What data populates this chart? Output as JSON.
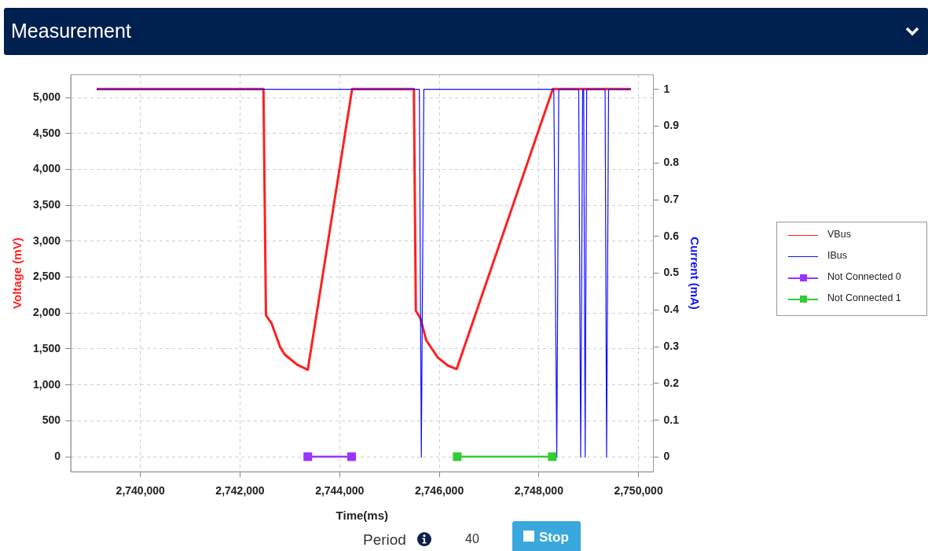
{
  "chart_data": {
    "type": "line",
    "title": "Measurement",
    "xlabel": "Time(ms)",
    "ylabel": "Voltage (mV)",
    "y2label": "Current (mA)",
    "xlim": [
      2738600,
      2750300
    ],
    "xticks": [
      {
        "value": 2740000,
        "label": "2,740,000"
      },
      {
        "value": 2742000,
        "label": "2,742,000"
      },
      {
        "value": 2744000,
        "label": "2,744,000"
      },
      {
        "value": 2746000,
        "label": "2,746,000"
      },
      {
        "value": 2748000,
        "label": "2,748,000"
      },
      {
        "value": 2750000,
        "label": "2,750,000"
      }
    ],
    "ylim": [
      -210,
      5320
    ],
    "yticks": [
      0,
      500,
      {
        "value": 1000,
        "label": "1,000"
      },
      {
        "value": 1500,
        "label": "1,500"
      },
      {
        "value": 2000,
        "label": "2,000"
      },
      {
        "value": 2500,
        "label": "2,500"
      },
      {
        "value": 3000,
        "label": "3,000"
      },
      {
        "value": 3500,
        "label": "3,500"
      },
      {
        "value": 4000,
        "label": "4,000"
      },
      {
        "value": 4500,
        "label": "4,500"
      },
      {
        "value": 5000,
        "label": "5,000"
      }
    ],
    "y2lim": [
      -0.04,
      1.04
    ],
    "y2ticks": [
      0,
      0.1,
      0.2,
      0.3,
      0.4,
      0.5,
      0.6,
      0.7,
      0.8,
      0.9,
      1
    ],
    "grid": true,
    "legend": "right",
    "series": [
      {
        "name": "VBus",
        "color": "#ff2020",
        "marker": "none",
        "x": [
          2739120,
          2742470,
          2742520,
          2742630,
          2742810,
          2742900,
          2743150,
          2743360,
          2744250,
          2745490,
          2745530,
          2745620,
          2745740,
          2745970,
          2746170,
          2746350,
          2748280,
          2749850
        ],
        "values": [
          5120,
          5120,
          1970,
          1860,
          1520,
          1420,
          1280,
          1210,
          5120,
          5120,
          2030,
          1930,
          1620,
          1380,
          1270,
          1220,
          5120,
          5120
        ]
      },
      {
        "name": "IBus",
        "color": "#1010ff",
        "marker": "none",
        "axis": "y2",
        "x": [
          2739120,
          2745600,
          2745640,
          2745690,
          2748300,
          2748360,
          2748400,
          2748800,
          2748840,
          2748880,
          2748900,
          2748930,
          2748960,
          2749330,
          2749360,
          2749400,
          2749850
        ],
        "values": [
          1,
          1,
          0,
          1,
          1,
          0,
          1,
          1,
          0,
          1,
          1,
          0,
          1,
          1,
          0,
          1,
          1
        ]
      },
      {
        "name": "Not Connected 0",
        "color": "#9933ff",
        "marker": "square",
        "x": [
          2743360,
          2744240
        ],
        "values": [
          0,
          0
        ]
      },
      {
        "name": "Not Connected 1",
        "color": "#33cc33",
        "marker": "square",
        "x": [
          2746360,
          2748270
        ],
        "values": [
          0,
          0
        ]
      }
    ],
    "annotations": [
      "Period",
      "40",
      "Stop"
    ]
  }
}
